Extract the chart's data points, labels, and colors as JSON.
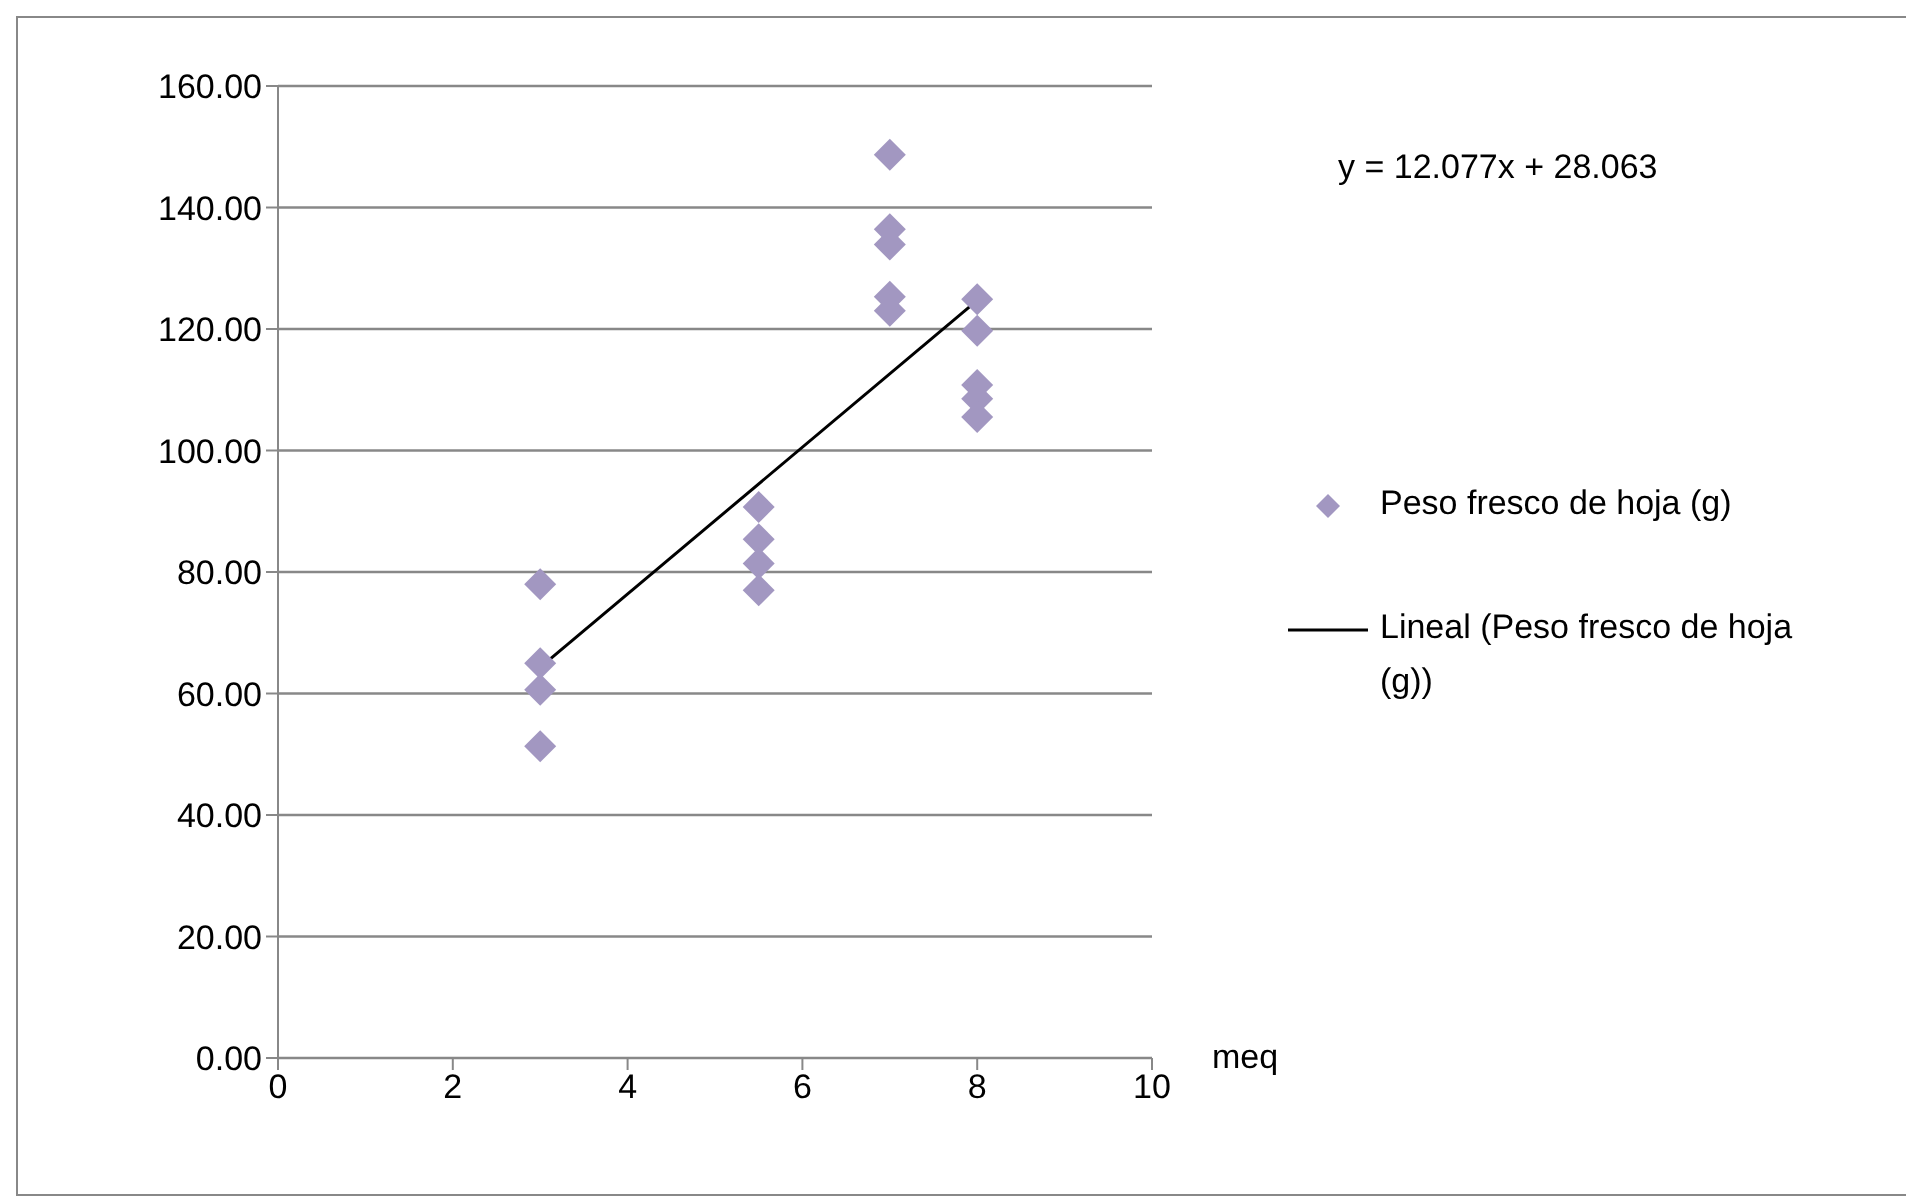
{
  "chart_data": {
    "type": "scatter",
    "xlabel": "meq",
    "annotations": [
      "y = 12.077x + 28.063"
    ],
    "xlim": [
      0,
      10
    ],
    "xticks": [
      0,
      2,
      4,
      6,
      8,
      10
    ],
    "ylim": [
      0,
      160
    ],
    "yticks": [
      {
        "value": 0,
        "label": "0.00"
      },
      {
        "value": 20,
        "label": "20.00"
      },
      {
        "value": 40,
        "label": "40.00"
      },
      {
        "value": 60,
        "label": "60.00"
      },
      {
        "value": 80,
        "label": "80.00"
      },
      {
        "value": 100,
        "label": "100.00"
      },
      {
        "value": 120,
        "label": "120.00"
      },
      {
        "value": 140,
        "label": "140.00"
      },
      {
        "value": 160,
        "label": "160.00"
      }
    ],
    "grid": "y",
    "legend": "right",
    "marker": "diamond",
    "series": [
      {
        "name": "Peso fresco de hoja (g)",
        "color": "#a297c1",
        "x": [
          3,
          3,
          3,
          3,
          5.5,
          5.5,
          5.5,
          5.5,
          7,
          7,
          7,
          7,
          7,
          8,
          8,
          8,
          8,
          8
        ],
        "values": [
          78,
          65,
          60.6,
          51.3,
          90.7,
          85.4,
          81.4,
          77,
          148.7,
          136.4,
          133.9,
          125.3,
          123,
          124.9,
          119.7,
          110.8,
          108.5,
          105.5
        ]
      },
      {
        "name": "Lineal (Peso fresco de hoja (g))",
        "type": "line",
        "color": "#000000",
        "line_style": "solid",
        "marker": "none",
        "x": [
          3,
          8
        ],
        "values": [
          64.3,
          124.7
        ]
      }
    ]
  }
}
